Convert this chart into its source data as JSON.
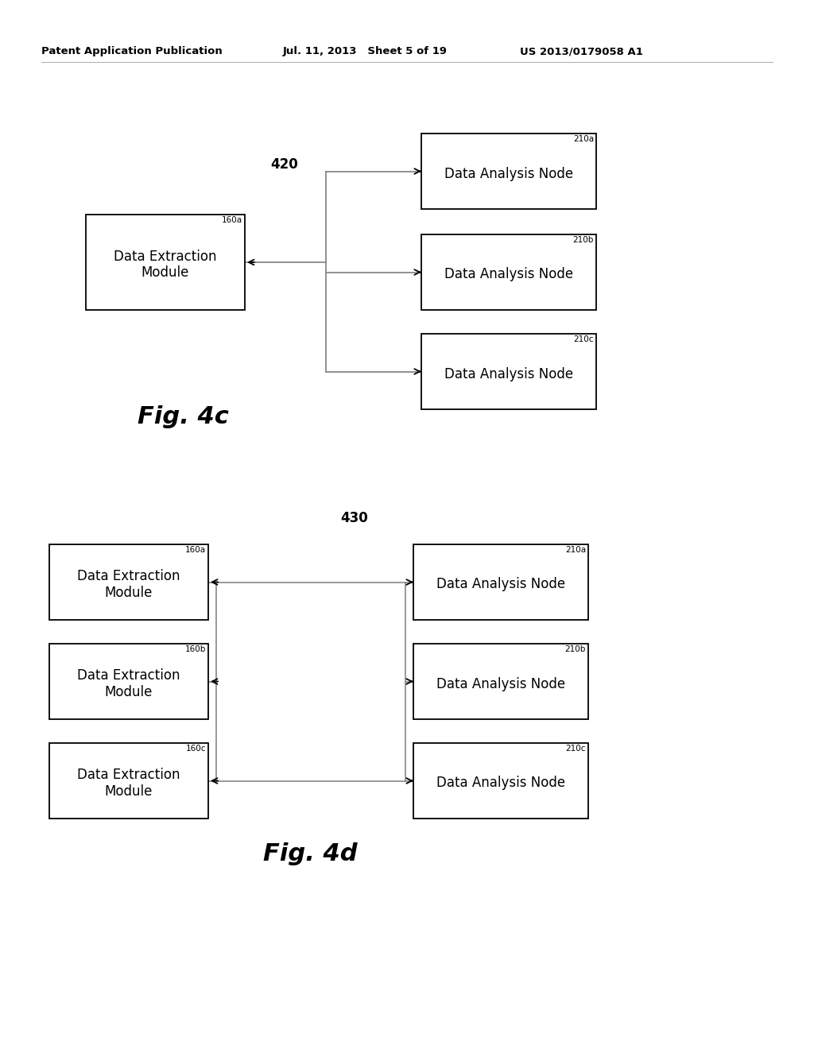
{
  "header_left": "Patent Application Publication",
  "header_mid": "Jul. 11, 2013   Sheet 5 of 19",
  "header_right": "US 2013/0179058 A1",
  "fig4c_label": "420",
  "fig4c_caption": "Fig. 4c",
  "fig4d_label": "430",
  "fig4d_caption": "Fig. 4d",
  "dem_box_label_4c": "160a",
  "dem_box_text": "Data Extraction\nModule",
  "dan_labels_4c": [
    "210a",
    "210b",
    "210c"
  ],
  "dan_text": "Data Analysis Node",
  "dem_labels_4d": [
    "160a",
    "160b",
    "160c"
  ],
  "dan_labels_4d": [
    "210a",
    "210b",
    "210c"
  ],
  "box_edge_color": "#000000",
  "line_color": "#888888",
  "arrow_color": "#000000",
  "bg_color": "#ffffff",
  "text_color": "#000000"
}
